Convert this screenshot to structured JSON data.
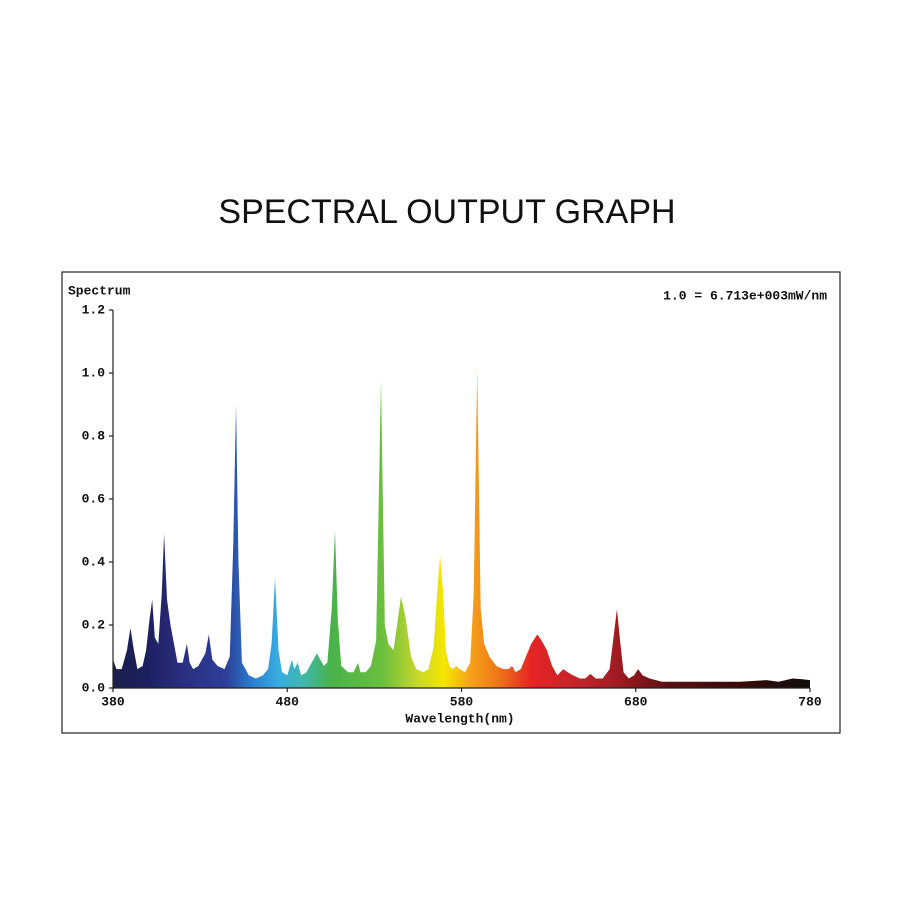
{
  "chart_data": {
    "type": "area",
    "title": "SPECTRAL OUTPUT GRAPH",
    "y_label": "Spectrum",
    "x_label": "Wavelength(nm)",
    "annotation": "1.0 = 6.713e+003mW/nm",
    "xlim": [
      380,
      780
    ],
    "xticks": [
      380,
      480,
      580,
      680,
      780
    ],
    "ylim": [
      0,
      1.2
    ],
    "yticks": [
      {
        "value": 0,
        "label": "0.0"
      },
      0.2,
      0.4,
      0.6,
      0.8,
      {
        "value": 1,
        "label": "1.0"
      },
      1.2
    ],
    "grid": false,
    "color_stops": [
      [
        380,
        "#1a1f4a"
      ],
      [
        400,
        "#1d2060"
      ],
      [
        420,
        "#2a2e80"
      ],
      [
        445,
        "#2d3f9a"
      ],
      [
        460,
        "#2a7fd0"
      ],
      [
        475,
        "#37aee0"
      ],
      [
        490,
        "#3fb8a8"
      ],
      [
        505,
        "#48b24a"
      ],
      [
        535,
        "#6cbf3e"
      ],
      [
        555,
        "#c8d82a"
      ],
      [
        570,
        "#f5e600"
      ],
      [
        585,
        "#f5a21a"
      ],
      [
        600,
        "#f07a18"
      ],
      [
        620,
        "#e52424"
      ],
      [
        650,
        "#c0232a"
      ],
      [
        670,
        "#9e1b20"
      ],
      [
        700,
        "#5a1010"
      ],
      [
        740,
        "#3a0a0a"
      ],
      [
        780,
        "#0e0e0e"
      ]
    ],
    "x": [
      380,
      382,
      385,
      388,
      390,
      392,
      394,
      397,
      399,
      401,
      402.5,
      404,
      406,
      408,
      409.3,
      411,
      413,
      415,
      417,
      420,
      422.4,
      424,
      426,
      429,
      431,
      433,
      435,
      437,
      440,
      444,
      447,
      449,
      450.6,
      452,
      454,
      458,
      462,
      466,
      469,
      471,
      473,
      475,
      477,
      480,
      482.7,
      484,
      486,
      488,
      491,
      494,
      497,
      499,
      501,
      503,
      505.5,
      507.4,
      509,
      511,
      515,
      518,
      520.6,
      522,
      525,
      528,
      531,
      533.8,
      536,
      538,
      541,
      543,
      545.3,
      548,
      551,
      554,
      558,
      561,
      564,
      566,
      567.7,
      569.5,
      571,
      573,
      575,
      576.9,
      579,
      582,
      585,
      587,
      589,
      591,
      593,
      596,
      600,
      604,
      607,
      609,
      611,
      614,
      617,
      620,
      623.5,
      626,
      629,
      632,
      635,
      638.4,
      641,
      644,
      648,
      651,
      654,
      657,
      661,
      665,
      667,
      669.2,
      671,
      673,
      676,
      679,
      681.3,
      684,
      688,
      695,
      710,
      740,
      755,
      762,
      770,
      775,
      780
    ],
    "values": [
      0.09,
      0.06,
      0.06,
      0.12,
      0.19,
      0.12,
      0.06,
      0.07,
      0.12,
      0.22,
      0.28,
      0.16,
      0.14,
      0.3,
      0.49,
      0.28,
      0.2,
      0.14,
      0.08,
      0.08,
      0.14,
      0.08,
      0.06,
      0.07,
      0.09,
      0.11,
      0.17,
      0.09,
      0.07,
      0.06,
      0.1,
      0.45,
      0.9,
      0.4,
      0.08,
      0.04,
      0.03,
      0.04,
      0.06,
      0.14,
      0.35,
      0.12,
      0.05,
      0.04,
      0.09,
      0.06,
      0.08,
      0.04,
      0.05,
      0.08,
      0.11,
      0.09,
      0.07,
      0.08,
      0.25,
      0.5,
      0.22,
      0.07,
      0.05,
      0.05,
      0.08,
      0.05,
      0.05,
      0.07,
      0.15,
      0.98,
      0.2,
      0.14,
      0.12,
      0.2,
      0.29,
      0.22,
      0.1,
      0.06,
      0.05,
      0.06,
      0.13,
      0.3,
      0.42,
      0.3,
      0.12,
      0.07,
      0.06,
      0.07,
      0.06,
      0.05,
      0.08,
      0.3,
      1.01,
      0.25,
      0.14,
      0.1,
      0.07,
      0.06,
      0.06,
      0.07,
      0.05,
      0.06,
      0.1,
      0.14,
      0.17,
      0.15,
      0.12,
      0.07,
      0.04,
      0.06,
      0.05,
      0.04,
      0.03,
      0.03,
      0.045,
      0.03,
      0.03,
      0.06,
      0.15,
      0.25,
      0.15,
      0.05,
      0.03,
      0.04,
      0.06,
      0.04,
      0.03,
      0.02,
      0.02,
      0.02,
      0.025,
      0.02,
      0.03,
      0.028,
      0.025
    ]
  }
}
